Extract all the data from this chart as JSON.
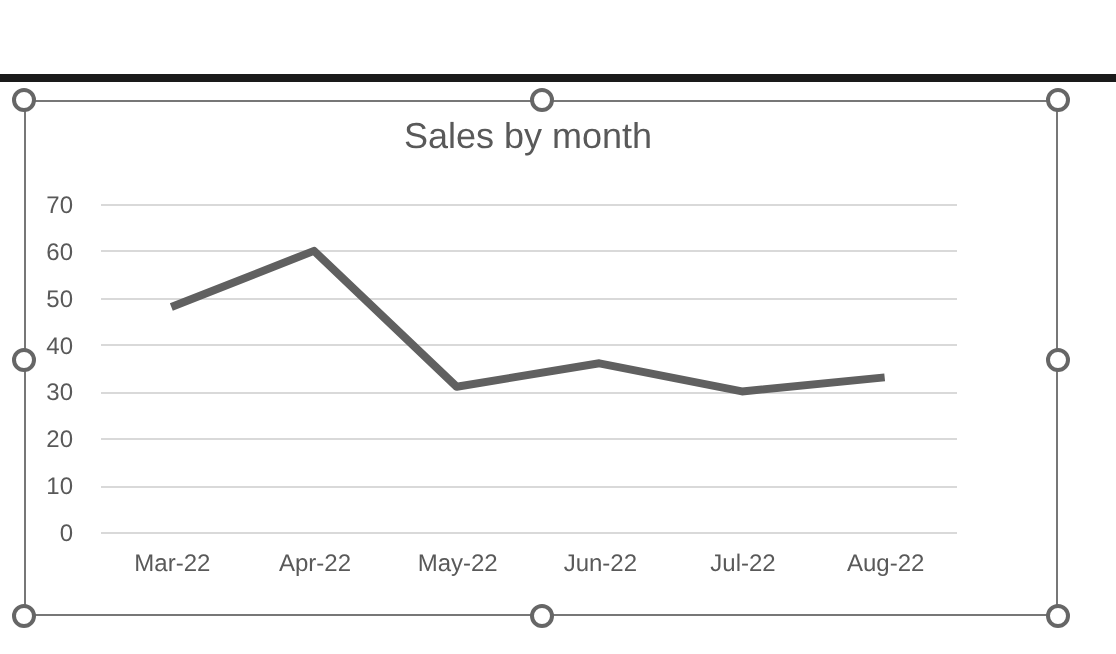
{
  "chart_data": {
    "type": "line",
    "title": "Sales by month",
    "categories": [
      "Mar-22",
      "Apr-22",
      "May-22",
      "Jun-22",
      "Jul-22",
      "Aug-22"
    ],
    "series": [
      {
        "color": "#606060",
        "values": [
          48,
          60,
          31,
          36,
          30,
          33
        ]
      }
    ],
    "ylim": [
      0,
      70
    ],
    "yticks": [
      0,
      10,
      20,
      30,
      40,
      50,
      60,
      70
    ],
    "grid": "y",
    "legend": false,
    "marker": "none",
    "line_style": "solid"
  }
}
